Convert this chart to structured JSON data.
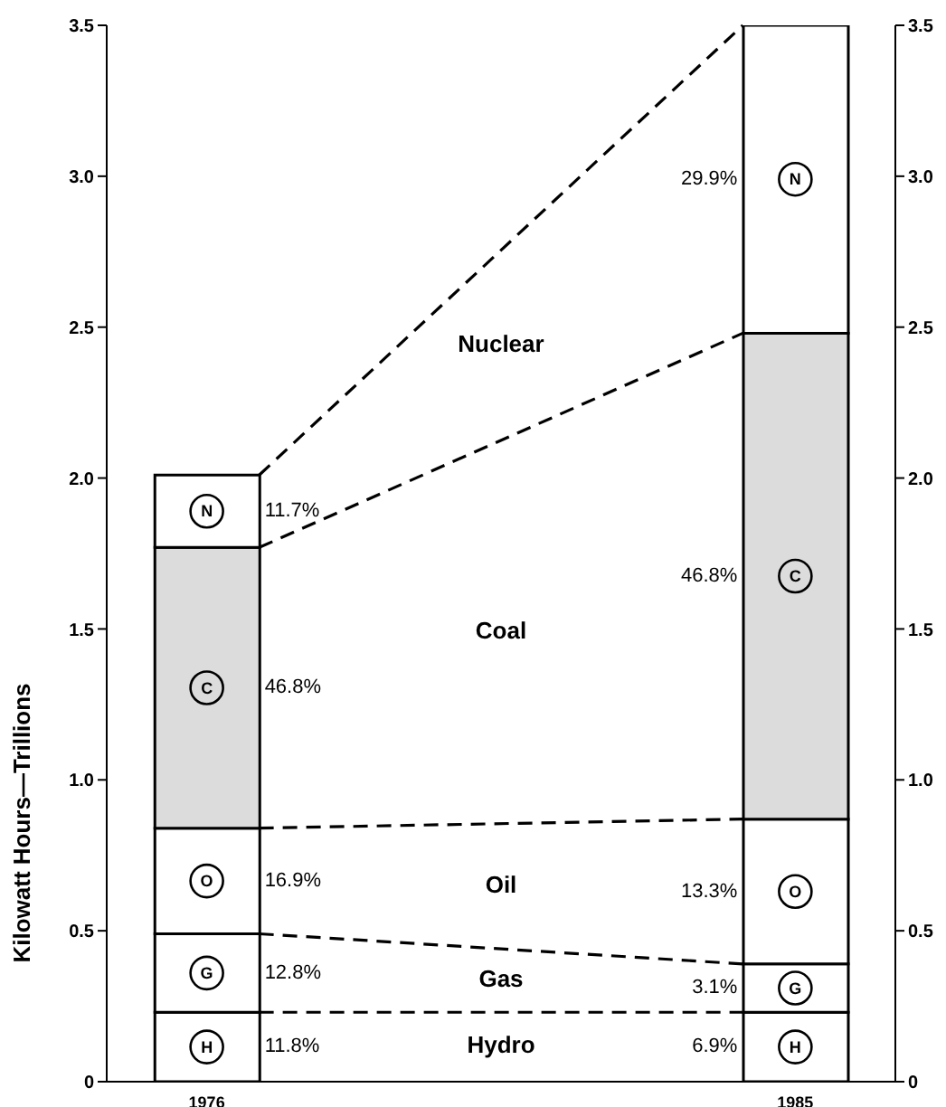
{
  "chart_data": {
    "type": "bar",
    "stacked": true,
    "categories": [
      "1976",
      "1985"
    ],
    "ylabel": "Kilowatt Hours—Trillions",
    "ylim": [
      0,
      3.5
    ],
    "yticks": [
      0,
      0.5,
      {
        "value": 1,
        "label": "1.0"
      },
      1.5,
      {
        "value": 2,
        "label": "2.0"
      },
      2.5,
      {
        "value": 3,
        "label": "3.0"
      },
      3.5
    ],
    "y2lim": [
      0,
      3.5
    ],
    "y2ticks": [
      0,
      0.5,
      {
        "value": 1,
        "label": "1.0"
      },
      1.5,
      {
        "value": 2,
        "label": "2.0"
      },
      2.5,
      {
        "value": 3,
        "label": "3.0"
      },
      3.5
    ],
    "legend": false,
    "grid": false,
    "series": [
      {
        "color": "#ffffff",
        "values": [
          0.23,
          0.23
        ]
      },
      {
        "color": "#ffffff",
        "values": [
          0.26,
          0.16
        ]
      },
      {
        "color": "#ffffff",
        "values": [
          0.35,
          0.48
        ]
      },
      {
        "color": "#dcdcdc",
        "values": [
          0.93,
          1.61
        ]
      },
      {
        "color": "#ffffff",
        "values": [
          0.24,
          1.02
        ]
      }
    ],
    "annotations": [
      "Hydro",
      "Gas",
      "Oil",
      "Coal",
      "Nuclear",
      "11.8%",
      "12.8%",
      "16.9%",
      "46.8%",
      "11.7%",
      "6.9%",
      "3.1%",
      "13.3%",
      "46.8%",
      "29.9%",
      "H",
      "G",
      "O",
      "C",
      "N",
      "H",
      "G",
      "O",
      "C",
      "N"
    ]
  }
}
